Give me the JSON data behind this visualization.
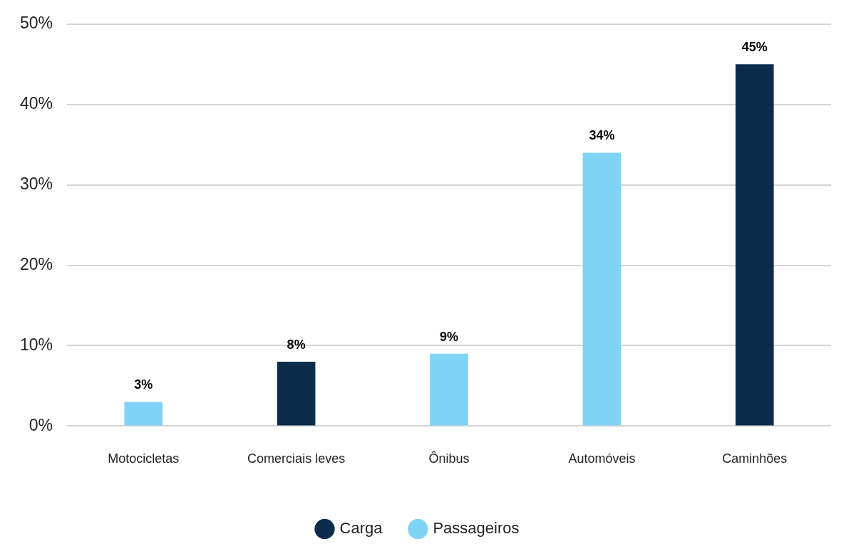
{
  "chart_data": {
    "type": "bar",
    "categories": [
      "Motocicletas",
      "Comerciais leves",
      "Ônibus",
      "Automóveis",
      "Caminhões"
    ],
    "series": [
      {
        "name": "Carga",
        "color": "#0b2d4b",
        "values": [
          null,
          8,
          null,
          null,
          45
        ],
        "value_labels": [
          null,
          "8%",
          null,
          null,
          "45%"
        ]
      },
      {
        "name": "Passageiros",
        "color": "#7fd3f5",
        "values": [
          3,
          null,
          9,
          34,
          null
        ],
        "value_labels": [
          "3%",
          null,
          "9%",
          "34%",
          null
        ]
      }
    ],
    "ylim": [
      0,
      50
    ],
    "yticks": [
      {
        "value": 0,
        "label": "0%"
      },
      {
        "value": 10,
        "label": "10%"
      },
      {
        "value": 20,
        "label": "20%"
      },
      {
        "value": 30,
        "label": "30%"
      },
      {
        "value": 40,
        "label": "40%"
      },
      {
        "value": 50,
        "label": "50%"
      }
    ],
    "grid": "y",
    "legend": "bottom"
  }
}
